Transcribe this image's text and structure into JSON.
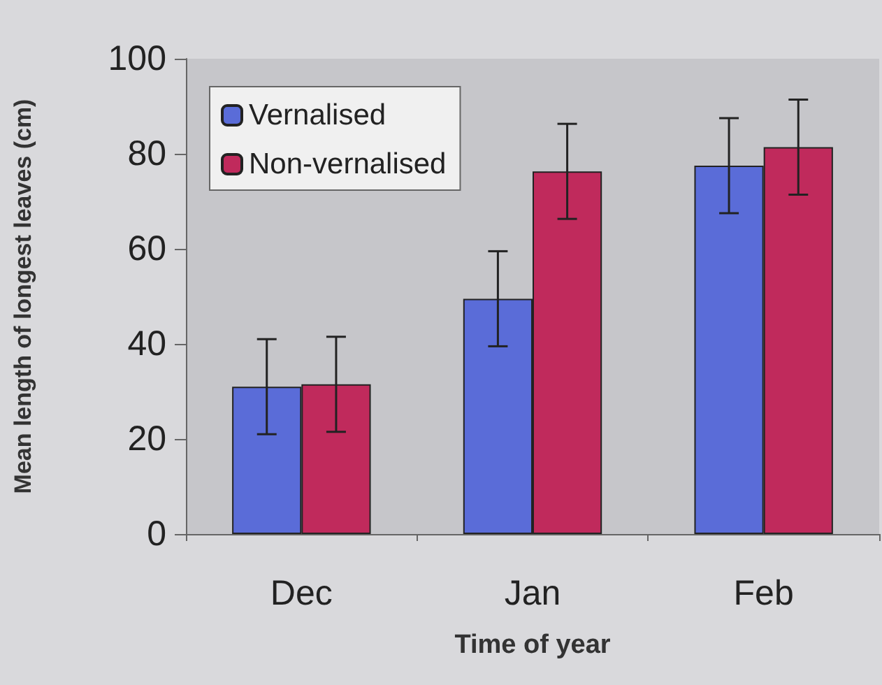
{
  "chart_data": {
    "type": "bar",
    "xlabel": "Time of year",
    "ylabel": "Mean length of longest leaves (cm)",
    "categories": [
      "Dec",
      "Jan",
      "Feb"
    ],
    "series": [
      {
        "name": "Vernalised",
        "color": "#5a6cd8",
        "values": [
          31,
          49.5,
          77.5
        ],
        "errors": [
          10,
          10,
          10
        ]
      },
      {
        "name": "Non-vernalised",
        "color": "#c02a5c",
        "values": [
          31.5,
          76.3,
          81.4
        ],
        "errors": [
          10,
          10,
          10
        ]
      }
    ],
    "ylim": [
      0,
      100
    ],
    "yticks": [
      0,
      20,
      40,
      60,
      80,
      100
    ],
    "grid": false,
    "legend": "top left"
  }
}
